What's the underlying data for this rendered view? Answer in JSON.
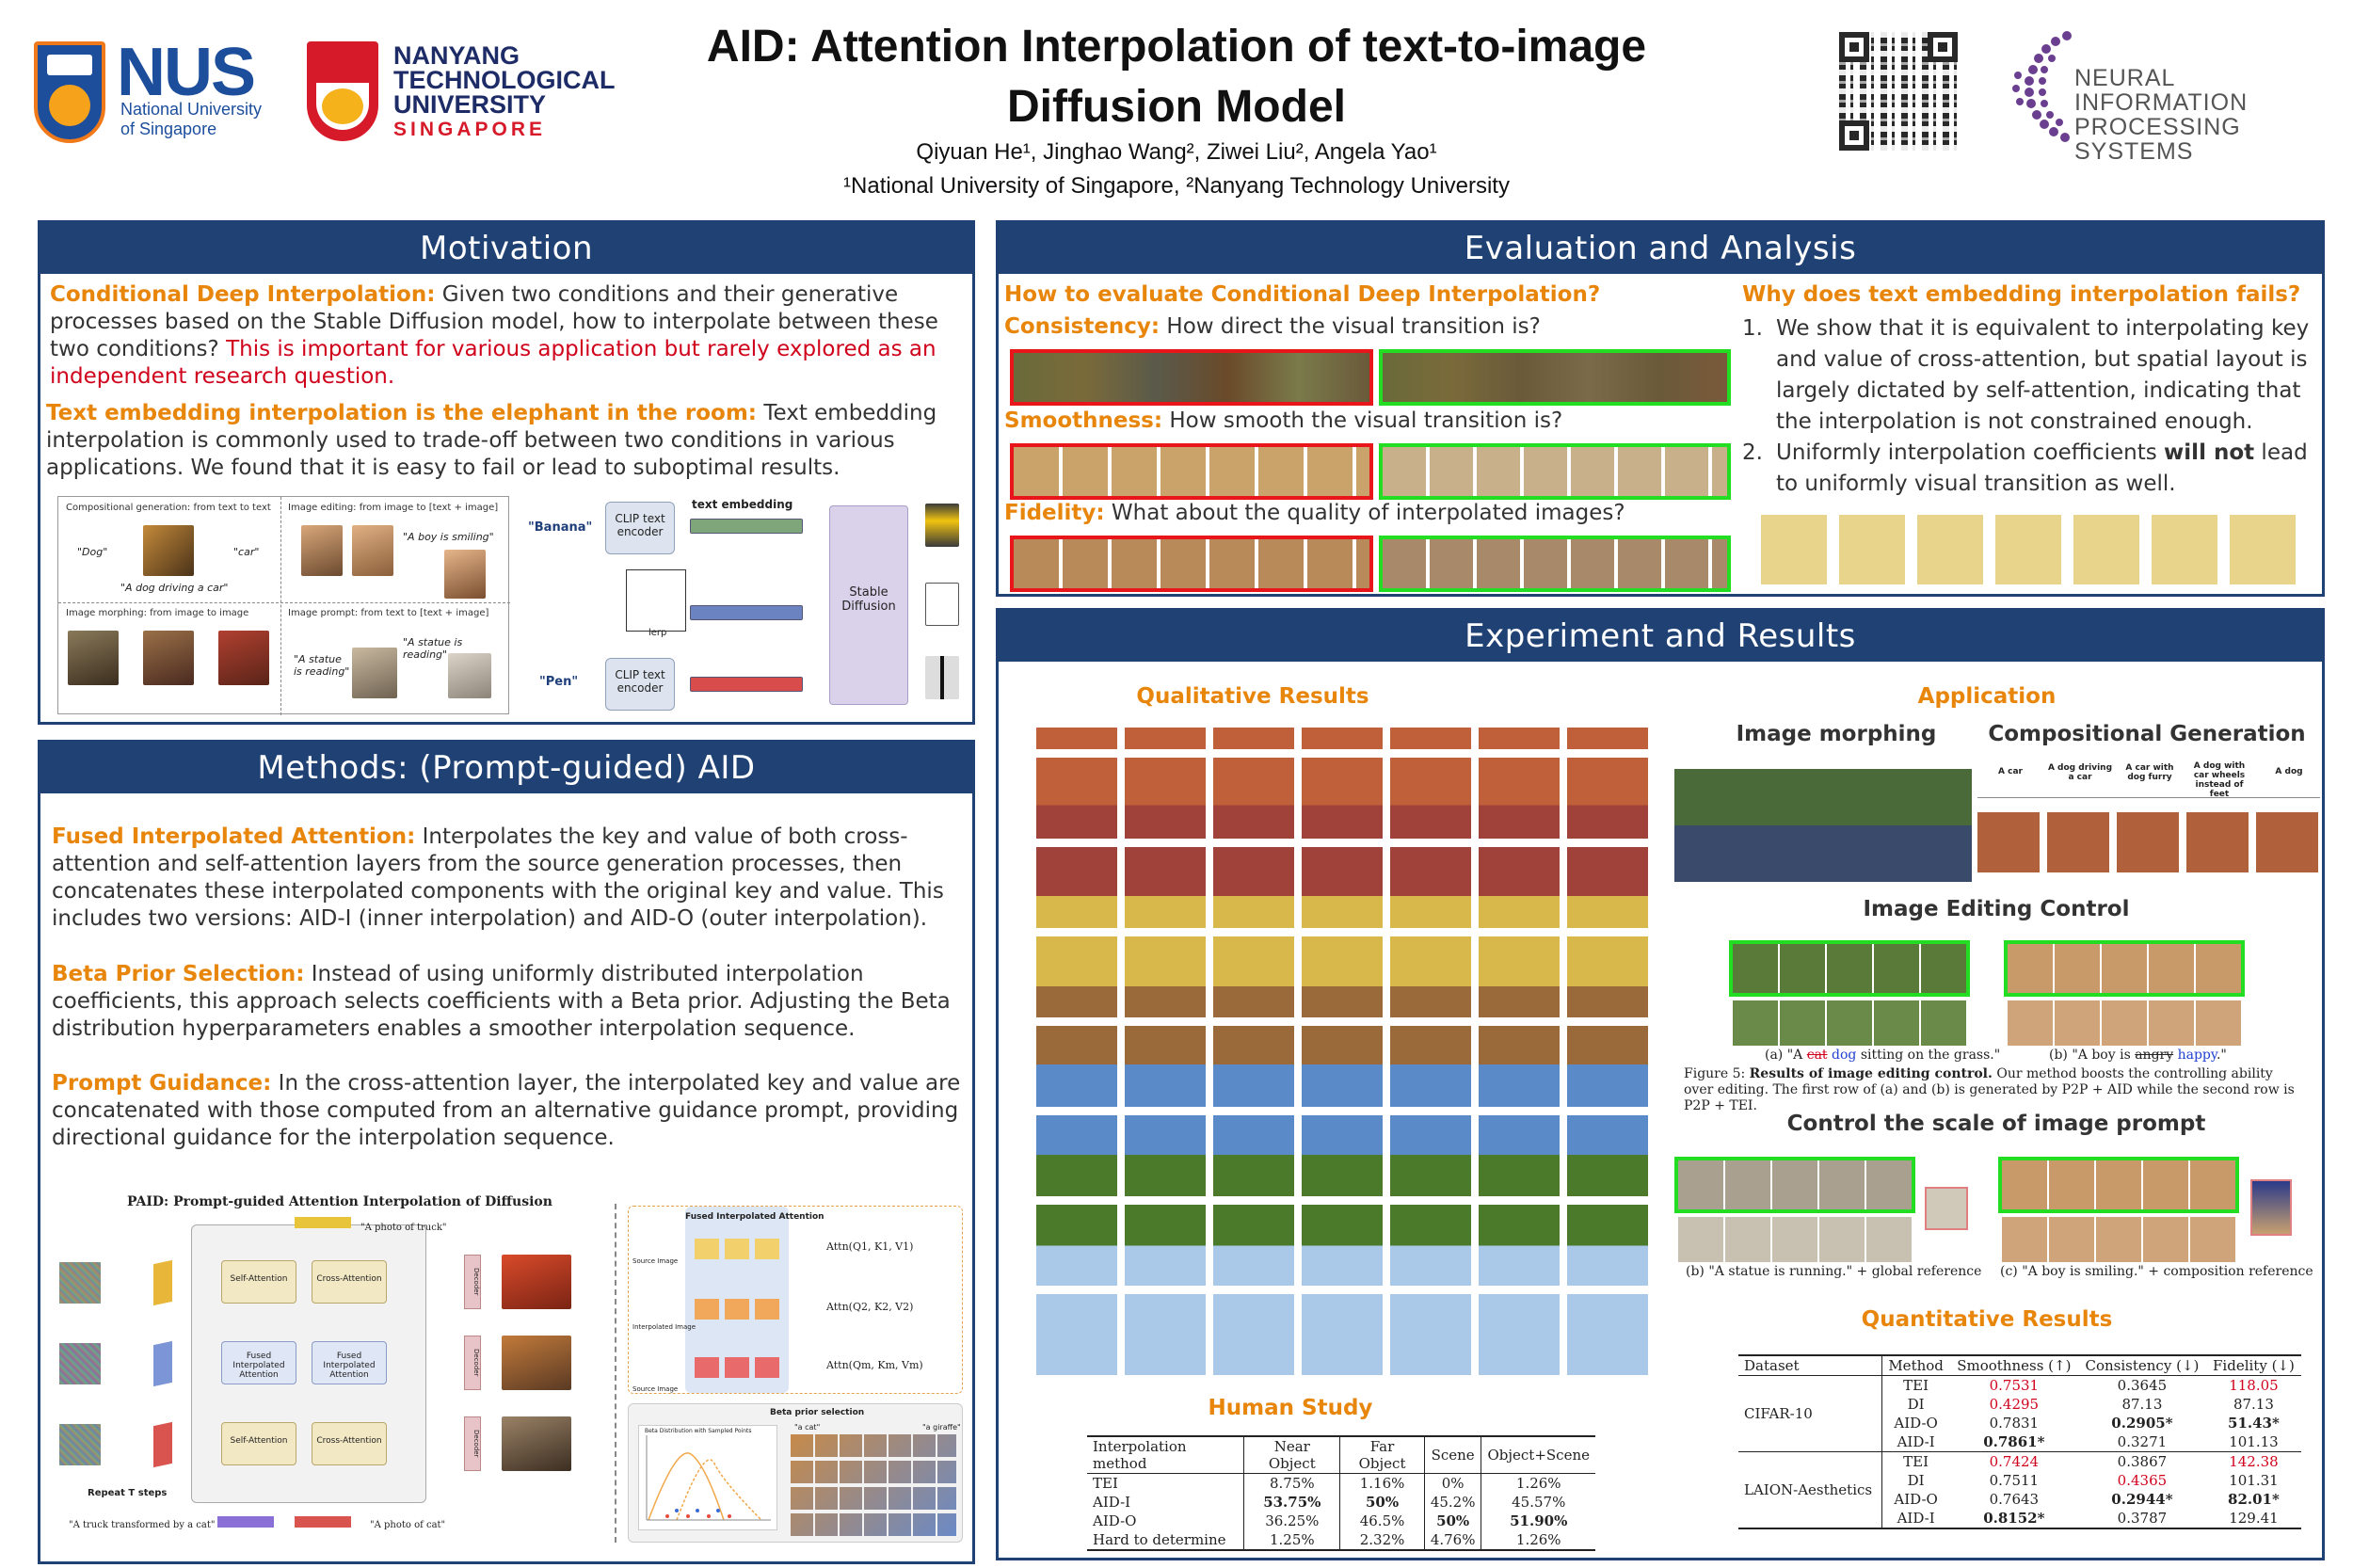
{
  "header": {
    "nus_name": "NUS",
    "nus_sub": "National University of Singapore",
    "ntu_name": "NANYANG TECHNOLOGICAL UNIVERSITY",
    "ntu_sg": "SINGAPORE",
    "title_line1": "AID: Attention Interpolation of text-to-image",
    "title_line2": "Diffusion Model",
    "authors": "Qiyuan He¹, Jinghao Wang², Ziwei Liu², Angela Yao¹",
    "affiliations": "¹National University of Singapore, ²Nanyang Technology University",
    "neurips": "NEURAL INFORMATION PROCESSING SYSTEMS"
  },
  "motivation": {
    "heading": "Motivation",
    "p1_lead": "Conditional Deep Interpolation:",
    "p1_body": " Given two conditions and their generative processes based on the Stable Diffusion model, how to interpolate between these two conditions? ",
    "p1_red": "This is important for various application but rarely explored as an independent research question.",
    "p2_lead": "Text embedding interpolation is the elephant in the room:",
    "p2_body": " Text embedding interpolation is commonly used to trade-off between two conditions in various applications. We found that it is easy to fail or lead to suboptimal results.",
    "fig": {
      "comp_gen": "Compositional generation: from text to text",
      "img_edit": "Image editing: from image to [text + image]",
      "img_morph": "Image morphing: from image to image",
      "img_prompt": "Image prompt: from text to [text + image]",
      "q_dog": "\"Dog\"",
      "q_car": "\"car\"",
      "q_dog_car": "\"A dog driving a car\"",
      "q_boy": "\"A boy is smiling\"",
      "q_statue1": "\"A statue is reading\"",
      "q_statue2": "\"A statue is reading\"",
      "banana": "\"Banana\"",
      "pen": "\"Pen\"",
      "clip1": "CLIP text encoder",
      "clip2": "CLIP text encoder",
      "text_emb": "text embedding",
      "lerp": "lerp",
      "sd": "Stable Diffusion"
    }
  },
  "methods": {
    "heading": "Methods: (Prompt-guided) AID",
    "p1_lead": "Fused Interpolated Attention:",
    "p1_body": " Interpolates the key and value of both cross-attention and self-attention layers from the source generation processes, then concatenates these interpolated components with the original key and value. This includes two versions: AID-I (inner interpolation) and AID-O (outer interpolation).",
    "p2_lead": "Beta Prior Selection:",
    "p2_body": " Instead of using uniformly distributed interpolation coefficients, this approach selects coefficients with a Beta prior. Adjusting the Beta distribution hyperparameters enables a smoother interpolation sequence.",
    "p3_lead": "Prompt Guidance:",
    "p3_body": " In the cross-attention layer, the interpolated key and value are concatenated with those computed from an alternative guidance prompt, providing directional guidance for the interpolation sequence.",
    "fig": {
      "title": "PAID: Prompt-guided Attention Interpolation of Diffusion",
      "photo_truck": "\"A photo of truck\"",
      "photo_cat": "\"A photo of cat\"",
      "truck_cat": "\"A truck transformed by a cat\"",
      "repeat": "Repeat T steps",
      "fused": "Fused Interpolated Attention",
      "beta": "Beta prior selection",
      "self_attn": "Self-Attention",
      "cross_attn": "Cross-Attention",
      "fused_self": "Fused Interpolated Attention",
      "fused_cross": "Fused Interpolated Attention",
      "decoder": "Decoder",
      "attn1": "Attn(Q1, K1, V1)",
      "attn2": "Attn(Q2, K2, V2)",
      "attn3": "Attn(Qm, Km, Vm)",
      "source_image": "Source Image",
      "interp_image": "Interpolated Image",
      "beta_plot": "Beta Distribution with Sampled Points",
      "a_cat": "\"a cat\"",
      "a_giraffe": "\"a giraffe\""
    }
  },
  "eval": {
    "heading": "Evaluation and Analysis",
    "how": "How to evaluate Conditional Deep Interpolation?",
    "consistency_lead": "Consistency:",
    "consistency_q": " How direct the visual transition is?",
    "smoothness_lead": "Smoothness:",
    "smoothness_q": " How smooth the visual transition is?",
    "fidelity_lead": "Fidelity:",
    "fidelity_q": " What about the quality of interpolated images?",
    "why": "Why does text embedding interpolation fails?",
    "why1": "We show that it is equivalent to interpolating key and value of cross-attention, but spatial layout is largely dictated by self-attention, indicating that the interpolation is not constrained enough.",
    "why2_a": "Uniformly interpolation coefficients ",
    "why2_b": "will not",
    "why2_c": " lead to uniformly visual transition as well."
  },
  "results": {
    "heading": "Experiment and Results",
    "qualitative": "Qualitative Results",
    "application": "Application",
    "morphing": "Image morphing",
    "compositional": "Compositional Generation",
    "comp_labels": [
      "A car",
      "A dog driving a car",
      "A car with dog furry",
      "A dog with car wheels instead of feet",
      "A dog"
    ],
    "editing_control": "Image Editing Control",
    "cap_a1": "(a) \"A ",
    "cap_a_cat": "cat",
    "cap_a_dog": "dog",
    "cap_a2": " sitting on the grass.\"",
    "cap_b1": "(b) \"A boy is ",
    "cap_b_angry": "angry",
    "cap_b_happy": "happy",
    "cap_b2": ".\"",
    "fig5_lead": "Figure 5: ",
    "fig5_bold": "Results of image editing control.",
    "fig5_body": " Our method boosts the controlling ability over editing. The first row of (a) and (b) is generated by P2P + AID while the second row is P2P + TEI.",
    "scale_prompt": "Control the scale of image prompt",
    "cap_statue": "(b) \"A statue is running.\" + global reference",
    "cap_boy": "(c) \"A boy is smiling.\" + composition reference",
    "human_study": "Human Study",
    "quantitative": "Quantitative Results"
  },
  "human_table": {
    "headers": [
      "Interpolation method",
      "Near Object",
      "Far Object",
      "Scene",
      "Object+Scene"
    ],
    "rows": [
      [
        "TEI",
        "8.75%",
        "1.16%",
        "0%",
        "1.26%"
      ],
      [
        "AID-I",
        "53.75%",
        "50%",
        "45.2%",
        "45.57%"
      ],
      [
        "AID-O",
        "36.25%",
        "46.5%",
        "50%",
        "51.90%"
      ],
      [
        "Hard to determine",
        "1.25%",
        "2.32%",
        "4.76%",
        "1.26%"
      ]
    ]
  },
  "quant_table": {
    "headers": [
      "Dataset",
      "Method",
      "Smoothness (↑)",
      "Consistency (↓)",
      "Fidelity (↓)"
    ],
    "groups": [
      {
        "dataset": "CIFAR-10",
        "rows": [
          [
            "TEI",
            "0.7531",
            "0.3645",
            "118.05"
          ],
          [
            "DI",
            "0.4295",
            "87.13",
            "87.13"
          ],
          [
            "AID-O",
            "0.7831",
            "0.2905*",
            "51.43*"
          ],
          [
            "AID-I",
            "0.7861*",
            "0.3271",
            "101.13"
          ]
        ]
      },
      {
        "dataset": "LAION-Aesthetics",
        "rows": [
          [
            "TEI",
            "0.7424",
            "0.3867",
            "142.38"
          ],
          [
            "DI",
            "0.7511",
            "0.4365",
            "101.31"
          ],
          [
            "AID-O",
            "0.7643",
            "0.2944*",
            "82.01*"
          ],
          [
            "AID-I",
            "0.8152*",
            "0.3787",
            "129.41"
          ]
        ]
      }
    ]
  },
  "colors": {
    "panel_blue": "#1f4173",
    "accent_orange": "#e8860c",
    "highlight_red": "#d0021b",
    "frame_red": "#e8161b",
    "frame_green": "#22dd22"
  }
}
